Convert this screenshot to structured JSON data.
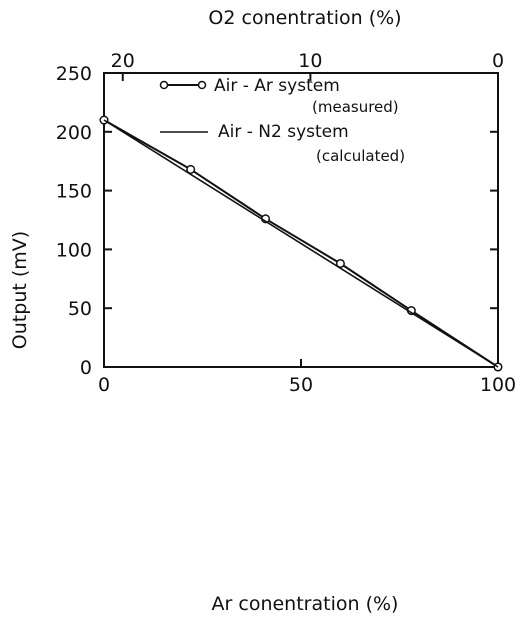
{
  "chart_data": {
    "type": "line",
    "xlabel": "Ar conentration (%)",
    "x2label": "O2 conentration (%)",
    "ylabel": "Output (mV)",
    "xlim": [
      0,
      100
    ],
    "ylim": [
      0,
      250
    ],
    "x_ticks": [
      0,
      50,
      100
    ],
    "y_ticks": [
      0,
      50,
      100,
      150,
      200,
      250
    ],
    "x2_ticks": [
      20,
      10,
      0
    ],
    "grid": false,
    "legend_position": "top-right",
    "series": [
      {
        "name": "Air - Ar system",
        "note": "(measured)",
        "marker": "circle",
        "x": [
          0,
          22,
          41,
          60,
          78,
          100
        ],
        "y": [
          210,
          168,
          126,
          88,
          48,
          0
        ]
      },
      {
        "name": "Air - N2 system",
        "note": "(calculated)",
        "marker": "none",
        "x": [
          0,
          100
        ],
        "y": [
          210,
          0
        ]
      }
    ]
  }
}
